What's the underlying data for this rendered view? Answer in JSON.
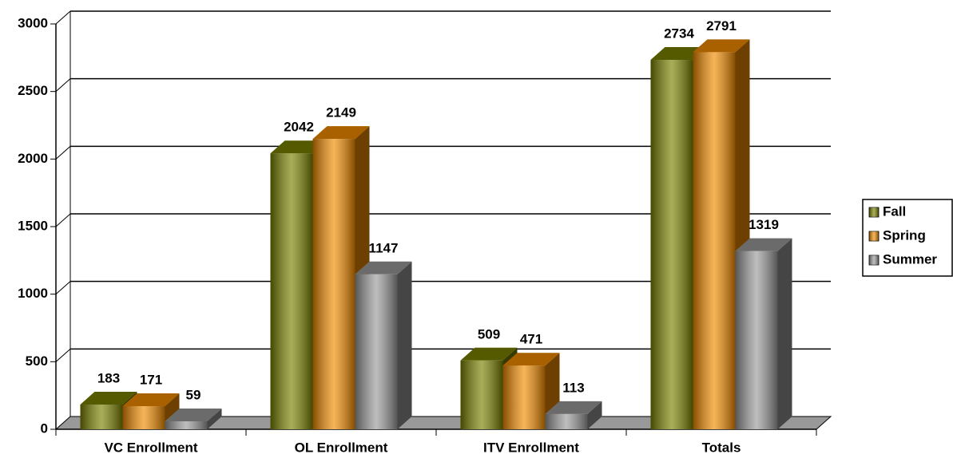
{
  "chart_data": {
    "type": "bar3d",
    "categories": [
      "VC Enrollment",
      "OL Enrollment",
      "ITV Enrollment",
      "Totals"
    ],
    "series": [
      {
        "name": "Fall",
        "color": "#7a8200",
        "values": [
          183,
          2042,
          509,
          2734
        ]
      },
      {
        "name": "Spring",
        "color": "#f28c00",
        "values": [
          171,
          2149,
          471,
          2791
        ]
      },
      {
        "name": "Summer",
        "color": "#9a9a9a",
        "values": [
          59,
          1147,
          113,
          1319
        ]
      }
    ],
    "ylim": [
      0,
      3000
    ],
    "yticks": [
      0,
      500,
      1000,
      1500,
      2000,
      2500,
      3000
    ],
    "grid": true,
    "legend": "right"
  }
}
